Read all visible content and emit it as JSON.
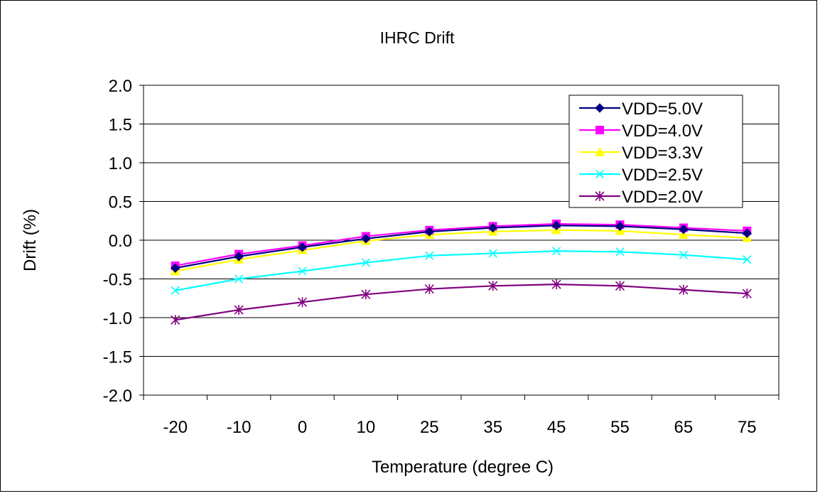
{
  "chart_data": {
    "type": "line",
    "title": "IHRC Drift",
    "xlabel": "Temperature (degree C)",
    "ylabel": "Drift (%)",
    "categories": [
      "-20",
      "-10",
      "0",
      "10",
      "25",
      "35",
      "45",
      "55",
      "65",
      "75"
    ],
    "ylim": [
      -2.0,
      2.0
    ],
    "ytick_labels": [
      "2.0",
      "1.5",
      "1.0",
      "0.5",
      "0.0",
      "-0.5",
      "-1.0",
      "-1.5",
      "-2.0"
    ],
    "grid": true,
    "legend": "top-right",
    "series": [
      {
        "name": "VDD=5.0V",
        "color": "#000080",
        "marker": "diamond",
        "values": [
          -0.36,
          -0.21,
          -0.09,
          0.02,
          0.11,
          0.16,
          0.19,
          0.18,
          0.14,
          0.09
        ]
      },
      {
        "name": "VDD=4.0V",
        "color": "#ff00ff",
        "marker": "square",
        "values": [
          -0.33,
          -0.18,
          -0.07,
          0.05,
          0.13,
          0.18,
          0.21,
          0.2,
          0.16,
          0.12
        ]
      },
      {
        "name": "VDD=3.3V",
        "color": "#ffff00",
        "marker": "triangle",
        "values": [
          -0.4,
          -0.25,
          -0.13,
          -0.01,
          0.07,
          0.11,
          0.13,
          0.12,
          0.07,
          0.03
        ]
      },
      {
        "name": "VDD=2.5V",
        "color": "#00ffff",
        "marker": "x",
        "values": [
          -0.65,
          -0.5,
          -0.4,
          -0.29,
          -0.2,
          -0.17,
          -0.14,
          -0.15,
          -0.19,
          -0.25
        ]
      },
      {
        "name": "VDD=2.0V",
        "color": "#800080",
        "marker": "star",
        "values": [
          -1.03,
          -0.9,
          -0.8,
          -0.7,
          -0.63,
          -0.59,
          -0.57,
          -0.59,
          -0.64,
          -0.69
        ]
      }
    ]
  }
}
